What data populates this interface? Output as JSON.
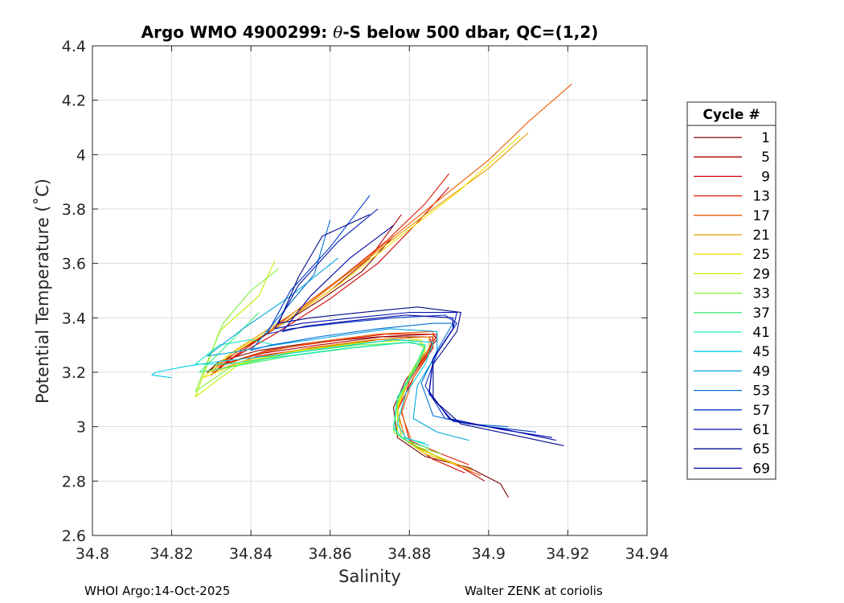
{
  "chart_data": {
    "type": "line",
    "title_prefix": "Argo WMO 4900299: ",
    "title_symbol": "θ",
    "title_suffix": "-S below 500 dbar,  QC=(1,2)",
    "xlabel": "Salinity",
    "ylabel": "Potential Temperature (˚C)",
    "xlim": [
      34.8,
      34.94
    ],
    "ylim": [
      2.6,
      4.4
    ],
    "xticks": [
      34.8,
      34.82,
      34.84,
      34.86,
      34.88,
      34.9,
      34.92,
      34.94
    ],
    "xtick_labels": [
      "34.8",
      "34.82",
      "34.84",
      "34.86",
      "34.88",
      "34.9",
      "34.92",
      "34.94"
    ],
    "yticks": [
      2.6,
      2.8,
      3.0,
      3.2,
      3.4,
      3.6,
      3.8,
      4.0,
      4.2,
      4.4
    ],
    "ytick_labels": [
      "2.6",
      "2.8",
      "3",
      "3.2",
      "3.4",
      "3.6",
      "3.8",
      "4",
      "4.2",
      "4.4"
    ],
    "grid": true,
    "legend": {
      "title": "Cycle #",
      "placement": "right",
      "entries": [
        {
          "label": "1",
          "color": "#7f0000"
        },
        {
          "label": "5",
          "color": "#b00000"
        },
        {
          "label": "9",
          "color": "#d40000"
        },
        {
          "label": "13",
          "color": "#e01a00"
        },
        {
          "label": "17",
          "color": "#ee5a00"
        },
        {
          "label": "21",
          "color": "#e69a00"
        },
        {
          "label": "25",
          "color": "#f4e200"
        },
        {
          "label": "29",
          "color": "#bff000"
        },
        {
          "label": "33",
          "color": "#7cf23a"
        },
        {
          "label": "37",
          "color": "#3cf07a"
        },
        {
          "label": "41",
          "color": "#1ae6b8"
        },
        {
          "label": "45",
          "color": "#00cfe8"
        },
        {
          "label": "49",
          "color": "#00a6e0"
        },
        {
          "label": "53",
          "color": "#0070d6"
        },
        {
          "label": "57",
          "color": "#0038c8"
        },
        {
          "label": "61",
          "color": "#0012b0"
        },
        {
          "label": "65",
          "color": "#000a8c"
        },
        {
          "label": "69",
          "color": "#0000a6"
        }
      ]
    },
    "series": [
      {
        "name": "1",
        "x": [
          34.905,
          34.903,
          34.895,
          34.884,
          34.877,
          34.876,
          34.879,
          34.884,
          34.887,
          34.886,
          34.872,
          34.856,
          34.842,
          34.832,
          34.829,
          34.835,
          34.846,
          34.858,
          34.868,
          34.876
        ],
        "y": [
          2.74,
          2.79,
          2.85,
          2.89,
          2.96,
          3.07,
          3.17,
          3.27,
          3.32,
          3.34,
          3.33,
          3.31,
          3.28,
          3.24,
          3.2,
          3.26,
          3.36,
          3.47,
          3.57,
          3.7
        ]
      },
      {
        "name": "5",
        "x": [
          34.899,
          34.892,
          34.884,
          34.878,
          34.877,
          34.88,
          34.885,
          34.886,
          34.873,
          34.857,
          34.843,
          34.833,
          34.83,
          34.836,
          34.848,
          34.86,
          34.87,
          34.878
        ],
        "y": [
          2.8,
          2.86,
          2.9,
          2.96,
          3.07,
          3.18,
          3.28,
          3.33,
          3.33,
          3.3,
          3.27,
          3.23,
          3.19,
          3.26,
          3.38,
          3.5,
          3.62,
          3.78
        ]
      },
      {
        "name": "9",
        "x": [
          34.894,
          34.886,
          34.879,
          34.877,
          34.881,
          34.886,
          34.885,
          34.872,
          34.856,
          34.842,
          34.832,
          34.834,
          34.846,
          34.86,
          34.872,
          34.882,
          34.89
        ],
        "y": [
          2.83,
          2.88,
          2.95,
          3.06,
          3.18,
          3.29,
          3.33,
          3.32,
          3.29,
          3.26,
          3.21,
          3.24,
          3.34,
          3.47,
          3.6,
          3.75,
          3.88
        ]
      },
      {
        "name": "13",
        "x": [
          34.895,
          34.888,
          34.88,
          34.878,
          34.88,
          34.885,
          34.887,
          34.874,
          34.858,
          34.844,
          34.833,
          34.83,
          34.838,
          34.85,
          34.863,
          34.874,
          34.884,
          34.89
        ],
        "y": [
          2.86,
          2.9,
          2.95,
          3.06,
          3.17,
          3.28,
          3.34,
          3.34,
          3.31,
          3.28,
          3.23,
          3.19,
          3.28,
          3.41,
          3.55,
          3.68,
          3.82,
          3.93
        ]
      },
      {
        "name": "17",
        "x": [
          34.898,
          34.89,
          34.881,
          34.878,
          34.881,
          34.886,
          34.886,
          34.872,
          34.856,
          34.842,
          34.832,
          34.836,
          34.85,
          34.866,
          34.882,
          34.9,
          34.91,
          34.921
        ],
        "y": [
          2.82,
          2.87,
          2.93,
          3.05,
          3.18,
          3.3,
          3.35,
          3.34,
          3.31,
          3.27,
          3.22,
          3.27,
          3.4,
          3.58,
          3.77,
          3.98,
          4.12,
          4.26
        ]
      },
      {
        "name": "21",
        "x": [
          34.896,
          34.887,
          34.879,
          34.877,
          34.88,
          34.885,
          34.885,
          34.871,
          34.855,
          34.84,
          34.83,
          34.836,
          34.852,
          34.868,
          34.884,
          34.9,
          34.91
        ],
        "y": [
          2.84,
          2.89,
          2.95,
          3.06,
          3.18,
          3.29,
          3.33,
          3.32,
          3.29,
          3.25,
          3.2,
          3.28,
          3.43,
          3.6,
          3.78,
          3.95,
          4.08
        ]
      },
      {
        "name": "25",
        "x": [
          34.892,
          34.884,
          34.878,
          34.877,
          34.88,
          34.884,
          34.883,
          34.869,
          34.853,
          34.838,
          34.828,
          34.834,
          34.848,
          34.862,
          34.876,
          34.892,
          34.908
        ],
        "y": [
          2.86,
          2.9,
          2.96,
          3.07,
          3.18,
          3.28,
          3.32,
          3.31,
          3.28,
          3.24,
          3.18,
          3.26,
          3.38,
          3.52,
          3.68,
          3.86,
          4.07
        ]
      },
      {
        "name": "29",
        "x": [
          34.889,
          34.882,
          34.877,
          34.877,
          34.88,
          34.884,
          34.882,
          34.868,
          34.852,
          34.837,
          34.826,
          34.832,
          34.842,
          34.846
        ],
        "y": [
          2.88,
          2.92,
          2.97,
          3.08,
          3.19,
          3.29,
          3.32,
          3.31,
          3.28,
          3.23,
          3.11,
          3.35,
          3.48,
          3.61
        ]
      },
      {
        "name": "33",
        "x": [
          34.888,
          34.881,
          34.876,
          34.877,
          34.881,
          34.884,
          34.881,
          34.867,
          34.85,
          34.835,
          34.826,
          34.833,
          34.84,
          34.847
        ],
        "y": [
          2.9,
          2.93,
          2.98,
          3.09,
          3.2,
          3.29,
          3.31,
          3.3,
          3.27,
          3.22,
          3.13,
          3.38,
          3.5,
          3.58
        ]
      },
      {
        "name": "37",
        "x": [
          34.885,
          34.879,
          34.876,
          34.877,
          34.881,
          34.884,
          34.88,
          34.866,
          34.85,
          34.835,
          34.827,
          34.834,
          34.842
        ],
        "y": [
          2.92,
          2.95,
          2.99,
          3.1,
          3.21,
          3.3,
          3.31,
          3.29,
          3.26,
          3.22,
          3.2,
          3.3,
          3.42
        ]
      },
      {
        "name": "41",
        "x": [
          34.884,
          34.878,
          34.876,
          34.877,
          34.882,
          34.884,
          34.879,
          34.865,
          34.849,
          34.834,
          34.826,
          34.832,
          34.84,
          34.846
        ],
        "y": [
          2.94,
          2.96,
          3.0,
          3.11,
          3.22,
          3.3,
          3.31,
          3.29,
          3.26,
          3.23,
          3.23,
          3.3,
          3.32,
          3.3
        ]
      },
      {
        "name": "45",
        "x": [
          34.885,
          34.879,
          34.877,
          34.879,
          34.884,
          34.886,
          34.876,
          34.86,
          34.845,
          34.832,
          34.823,
          34.816,
          34.815,
          34.82
        ],
        "y": [
          2.93,
          2.96,
          3.01,
          3.12,
          3.23,
          3.31,
          3.32,
          3.29,
          3.26,
          3.24,
          3.22,
          3.2,
          3.19,
          3.18
        ]
      },
      {
        "name": "49",
        "x": [
          34.895,
          34.887,
          34.881,
          34.882,
          34.887,
          34.887,
          34.875,
          34.86,
          34.846,
          34.834,
          34.829,
          34.838,
          34.85,
          34.862
        ],
        "y": [
          2.95,
          2.98,
          3.03,
          3.15,
          3.27,
          3.35,
          3.36,
          3.33,
          3.3,
          3.27,
          3.26,
          3.36,
          3.48,
          3.62
        ]
      },
      {
        "name": "53",
        "x": [
          34.905,
          34.895,
          34.886,
          34.883,
          34.887,
          34.891,
          34.886,
          34.872,
          34.857,
          34.845,
          34.84,
          34.848,
          34.856,
          34.86
        ],
        "y": [
          3.0,
          3.01,
          3.04,
          3.16,
          3.28,
          3.38,
          3.38,
          3.36,
          3.33,
          3.3,
          3.28,
          3.42,
          3.56,
          3.76
        ]
      },
      {
        "name": "57",
        "x": [
          34.912,
          34.9,
          34.889,
          34.884,
          34.887,
          34.892,
          34.889,
          34.876,
          34.862,
          34.85,
          34.844,
          34.85,
          34.86,
          34.87
        ],
        "y": [
          2.98,
          3.0,
          3.03,
          3.15,
          3.27,
          3.38,
          3.41,
          3.4,
          3.38,
          3.36,
          3.34,
          3.5,
          3.66,
          3.85
        ]
      },
      {
        "name": "61",
        "x": [
          34.917,
          34.904,
          34.891,
          34.885,
          34.886,
          34.891,
          34.892,
          34.88,
          34.866,
          34.853,
          34.846,
          34.852,
          34.862,
          34.872
        ],
        "y": [
          2.95,
          2.99,
          3.02,
          3.12,
          3.25,
          3.36,
          3.42,
          3.42,
          3.4,
          3.38,
          3.36,
          3.52,
          3.68,
          3.8
        ]
      },
      {
        "name": "65",
        "x": [
          34.919,
          34.906,
          34.893,
          34.886,
          34.886,
          34.892,
          34.893,
          34.882,
          34.868,
          34.855,
          34.847,
          34.852,
          34.858,
          34.87
        ],
        "y": [
          2.93,
          2.97,
          3.01,
          3.1,
          3.23,
          3.35,
          3.42,
          3.44,
          3.42,
          3.4,
          3.38,
          3.55,
          3.7,
          3.78
        ]
      },
      {
        "name": "69",
        "x": [
          34.916,
          34.903,
          34.89,
          34.885,
          34.886,
          34.891,
          34.891,
          34.879,
          34.866,
          34.854,
          34.848,
          34.855,
          34.865,
          34.876
        ],
        "y": [
          2.96,
          2.99,
          3.03,
          3.13,
          3.25,
          3.36,
          3.4,
          3.41,
          3.39,
          3.37,
          3.35,
          3.48,
          3.62,
          3.74
        ]
      }
    ]
  },
  "footer": {
    "left": "WHOI Argo:14-Oct-2025",
    "right": "Walter ZENK at coriolis"
  }
}
